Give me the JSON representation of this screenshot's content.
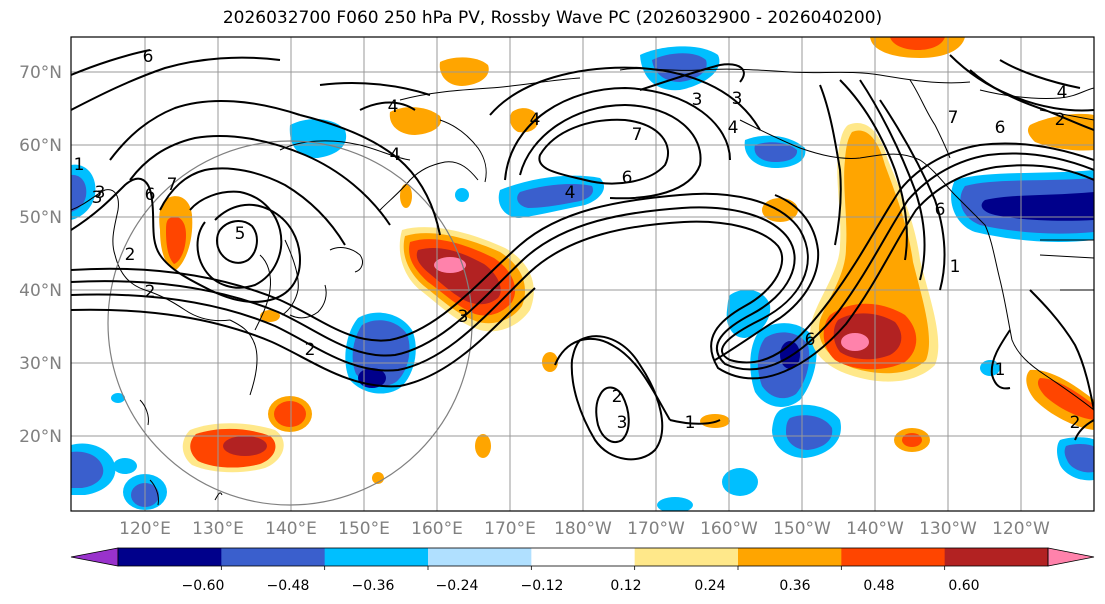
{
  "title": "2026032700 F060 250 hPa PV, Rossby Wave PC (2026032900 - 2026040200)",
  "latitude_labels": [
    "70°N",
    "60°N",
    "50°N",
    "40°N",
    "30°N",
    "20°N"
  ],
  "longitude_labels": [
    "120°E",
    "130°E",
    "140°E",
    "150°E",
    "160°E",
    "170°E",
    "180°W",
    "170°W",
    "160°W",
    "150°W",
    "140°W",
    "130°W",
    "120°W"
  ],
  "colorbar": {
    "tick_labels": [
      "−0.60",
      "−0.48",
      "−0.36",
      "−0.24",
      "−0.12",
      "0.12",
      "0.24",
      "0.36",
      "0.48",
      "0.60"
    ],
    "colors": [
      "#9932cc",
      "#00008b",
      "#3a5fcd",
      "#00bfff",
      "#b0e0ff",
      "#ffffff",
      "#ffe88a",
      "#ffa500",
      "#ff4500",
      "#b22222",
      "#ff82ab"
    ]
  },
  "contour_labels": [
    "6",
    "4",
    "4",
    "7",
    "6",
    "3",
    "4",
    "2",
    "1",
    "3",
    "2",
    "1",
    "2",
    "3",
    "6",
    "7",
    "5",
    "3",
    "2",
    "1",
    "6",
    "3",
    "2",
    "1",
    "6",
    "4",
    "4",
    "2",
    "4",
    "3",
    "7",
    "6"
  ]
}
